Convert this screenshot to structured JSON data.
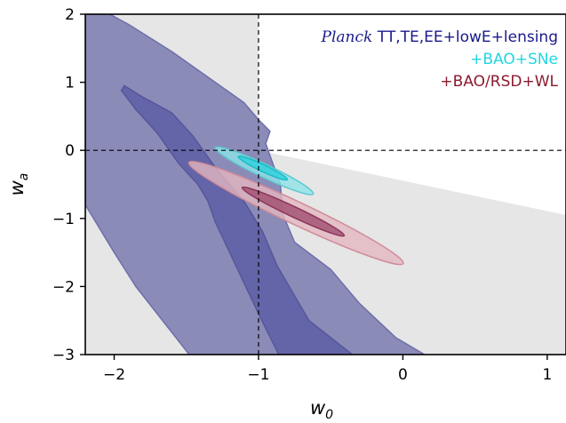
{
  "chart_data": {
    "type": "contour",
    "xlabel": {
      "base": "w",
      "sub": "0"
    },
    "ylabel": {
      "base": "w",
      "sub": "a"
    },
    "xlim": [
      -2.2,
      1.13
    ],
    "ylim": [
      -3,
      2
    ],
    "xticks": [
      -2,
      -1,
      0,
      1
    ],
    "yticks": [
      -3,
      -2,
      -1,
      0,
      1,
      2
    ],
    "tick_labels_x": [
      "−2",
      "−1",
      "0",
      "1"
    ],
    "tick_labels_y": [
      "−3",
      "−2",
      "−1",
      "0",
      "1",
      "2"
    ],
    "reference_lines": {
      "w0": -1,
      "wa": 0
    },
    "legend": [
      {
        "italic": "Planck",
        "text": " TT,TE,EE+lowE+lensing",
        "color": "#1a1a8c"
      },
      {
        "italic": "",
        "text": "+BAO+SNe",
        "color": "#22d6e0"
      },
      {
        "italic": "",
        "text": "+BAO/RSD+WL",
        "color": "#8b1a2e"
      }
    ],
    "excluded_region": {
      "color": "#e6e6e6",
      "polygon": [
        [
          -2.2,
          2
        ],
        [
          -1,
          2
        ],
        [
          -1,
          0
        ],
        [
          1.13,
          -0.95
        ],
        [
          1.13,
          -3
        ],
        [
          -2.2,
          -3
        ]
      ]
    },
    "series": [
      {
        "name": "Planck TT,TE,EE+lowE+lensing",
        "level": "95%",
        "fill": "#8b8bb8",
        "stroke": "#6e6eac",
        "points": [
          [
            -2.03,
            2.0
          ],
          [
            -1.9,
            1.85
          ],
          [
            -1.6,
            1.45
          ],
          [
            -1.3,
            1.0
          ],
          [
            -1.1,
            0.7
          ],
          [
            -1.0,
            0.45
          ],
          [
            -0.92,
            0.28
          ],
          [
            -0.95,
            0.1
          ],
          [
            -0.9,
            -0.2
          ],
          [
            -0.85,
            -0.48
          ],
          [
            -0.83,
            -0.95
          ],
          [
            -0.75,
            -1.35
          ],
          [
            -0.5,
            -1.75
          ],
          [
            -0.3,
            -2.25
          ],
          [
            -0.05,
            -2.75
          ],
          [
            0.15,
            -3.0
          ],
          [
            -1.48,
            -3.0
          ],
          [
            -1.85,
            -2.0
          ],
          [
            -2.0,
            -1.5
          ],
          [
            -2.2,
            -0.8
          ],
          [
            -2.2,
            2.0
          ]
        ]
      },
      {
        "name": "Planck TT,TE,EE+lowE+lensing",
        "level": "68%",
        "fill": "#6464a8",
        "stroke": "#56569c",
        "points": [
          [
            -1.95,
            0.88
          ],
          [
            -1.85,
            0.6
          ],
          [
            -1.7,
            0.25
          ],
          [
            -1.55,
            -0.2
          ],
          [
            -1.42,
            -0.5
          ],
          [
            -1.35,
            -0.75
          ],
          [
            -1.3,
            -1.05
          ],
          [
            -1.2,
            -1.5
          ],
          [
            -1.1,
            -1.95
          ],
          [
            -1.0,
            -2.4
          ],
          [
            -0.86,
            -3.0
          ],
          [
            -0.35,
            -3.0
          ],
          [
            -0.65,
            -2.5
          ],
          [
            -0.87,
            -1.7
          ],
          [
            -0.97,
            -1.2
          ],
          [
            -1.1,
            -0.75
          ],
          [
            -1.3,
            -0.25
          ],
          [
            -1.45,
            0.2
          ],
          [
            -1.6,
            0.55
          ],
          [
            -1.8,
            0.78
          ],
          [
            -1.93,
            0.95
          ]
        ]
      },
      {
        "name": "+BAO/RSD+WL",
        "level": "95%",
        "fill": "#e3b6c0",
        "stroke": "#cf8b98",
        "ellipse": {
          "center": [
            -0.74,
            -0.92
          ],
          "rx": 1.05,
          "ry": 0.1,
          "angle": -45
        }
      },
      {
        "name": "+BAO/RSD+WL",
        "level": "68%",
        "fill": "#a04e70",
        "stroke": "#8b3558",
        "ellipse": {
          "center": [
            -0.76,
            -0.9
          ],
          "rx": 0.5,
          "ry": 0.045,
          "angle": -45
        }
      },
      {
        "name": "+BAO+SNe",
        "level": "95%",
        "fill": "#8ee4e8",
        "stroke": "#5cc9d0",
        "ellipse": {
          "center": [
            -0.96,
            -0.3
          ],
          "rx": 0.48,
          "ry": 0.058,
          "angle": -44
        }
      },
      {
        "name": "+BAO+SNe",
        "level": "68%",
        "fill": "#2fd2dc",
        "stroke": "#18bcc6",
        "ellipse": {
          "center": [
            -0.97,
            -0.26
          ],
          "rx": 0.24,
          "ry": 0.03,
          "angle": -44
        }
      }
    ]
  }
}
